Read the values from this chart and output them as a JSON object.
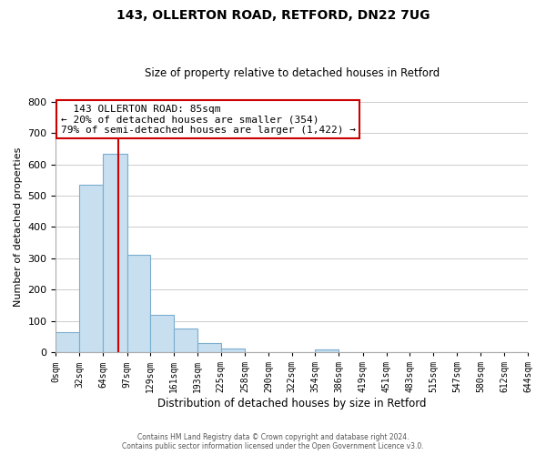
{
  "title": "143, OLLERTON ROAD, RETFORD, DN22 7UG",
  "subtitle": "Size of property relative to detached houses in Retford",
  "xlabel": "Distribution of detached houses by size in Retford",
  "ylabel": "Number of detached properties",
  "bin_edges": [
    0,
    32,
    64,
    97,
    129,
    161,
    193,
    225,
    258,
    290,
    322,
    354,
    386,
    419,
    451,
    483,
    515,
    547,
    580,
    612,
    644
  ],
  "bin_labels": [
    "0sqm",
    "32sqm",
    "64sqm",
    "97sqm",
    "129sqm",
    "161sqm",
    "193sqm",
    "225sqm",
    "258sqm",
    "290sqm",
    "322sqm",
    "354sqm",
    "386sqm",
    "419sqm",
    "451sqm",
    "483sqm",
    "515sqm",
    "547sqm",
    "580sqm",
    "612sqm",
    "644sqm"
  ],
  "bar_heights": [
    65,
    535,
    635,
    310,
    120,
    75,
    30,
    12,
    0,
    0,
    0,
    8,
    0,
    0,
    0,
    0,
    0,
    0,
    0,
    0
  ],
  "bar_color": "#c8dff0",
  "bar_edge_color": "#7aadce",
  "property_label": "143 OLLERTON ROAD: 85sqm",
  "pct_smaller": 20,
  "n_smaller": 354,
  "pct_larger_semi": 79,
  "n_larger_semi": 1422,
  "vline_x": 85,
  "vline_color": "#cc0000",
  "annotation_box_edge_color": "#cc0000",
  "ylim": [
    0,
    800
  ],
  "yticks": [
    0,
    100,
    200,
    300,
    400,
    500,
    600,
    700,
    800
  ],
  "footer_line1": "Contains HM Land Registry data © Crown copyright and database right 2024.",
  "footer_line2": "Contains public sector information licensed under the Open Government Licence v3.0."
}
